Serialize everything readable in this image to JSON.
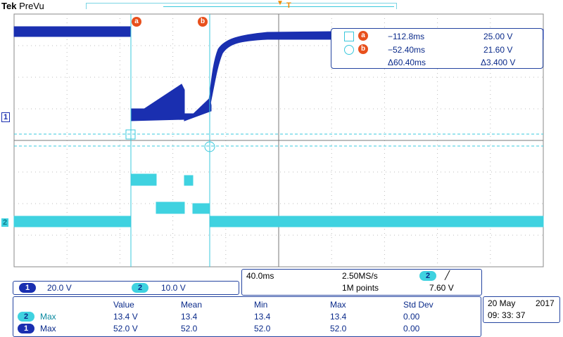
{
  "header": {
    "brand": "Tek",
    "mode": "PreVu",
    "trigger_glyph": "T"
  },
  "cursors": {
    "a_label": "a",
    "b_label": "b"
  },
  "channel_markers": {
    "ch1": "1",
    "ch2": "2"
  },
  "cursor_readout": {
    "a": {
      "time": "−112.8ms",
      "value": "25.00 V"
    },
    "b": {
      "time": "−52.40ms",
      "value": "21.60 V"
    },
    "delta": {
      "time": "Δ60.40ms",
      "value": "Δ3.400 V"
    }
  },
  "channel_scale": {
    "ch1": {
      "badge": "1",
      "scale": "20.0 V"
    },
    "ch2": {
      "badge": "2",
      "scale": "10.0 V"
    }
  },
  "acquisition": {
    "timebase": "40.0ms",
    "sample_rate": "2.50MS/s",
    "record_length": "1M points",
    "trigger_source": "2",
    "trigger_slope": "╱",
    "trigger_level": "7.60 V"
  },
  "measurements": {
    "headers": [
      "Value",
      "Mean",
      "Min",
      "Max",
      "Std Dev"
    ],
    "rows": [
      {
        "badge": "2",
        "type": "Max",
        "values": [
          "13.4 V",
          "13.4",
          "13.4",
          "13.4",
          "0.00"
        ]
      },
      {
        "badge": "1",
        "type": "Max",
        "values": [
          "52.0 V",
          "52.0",
          "52.0",
          "52.0",
          "0.00"
        ]
      }
    ]
  },
  "clock": {
    "date": "20 May",
    "year": "2017",
    "time": "09: 33: 37"
  },
  "colors": {
    "ch1": "#1a2fb0",
    "ch2": "#3fd2e0",
    "cursor": "#39c8dc",
    "marker": "#e8501c"
  }
}
